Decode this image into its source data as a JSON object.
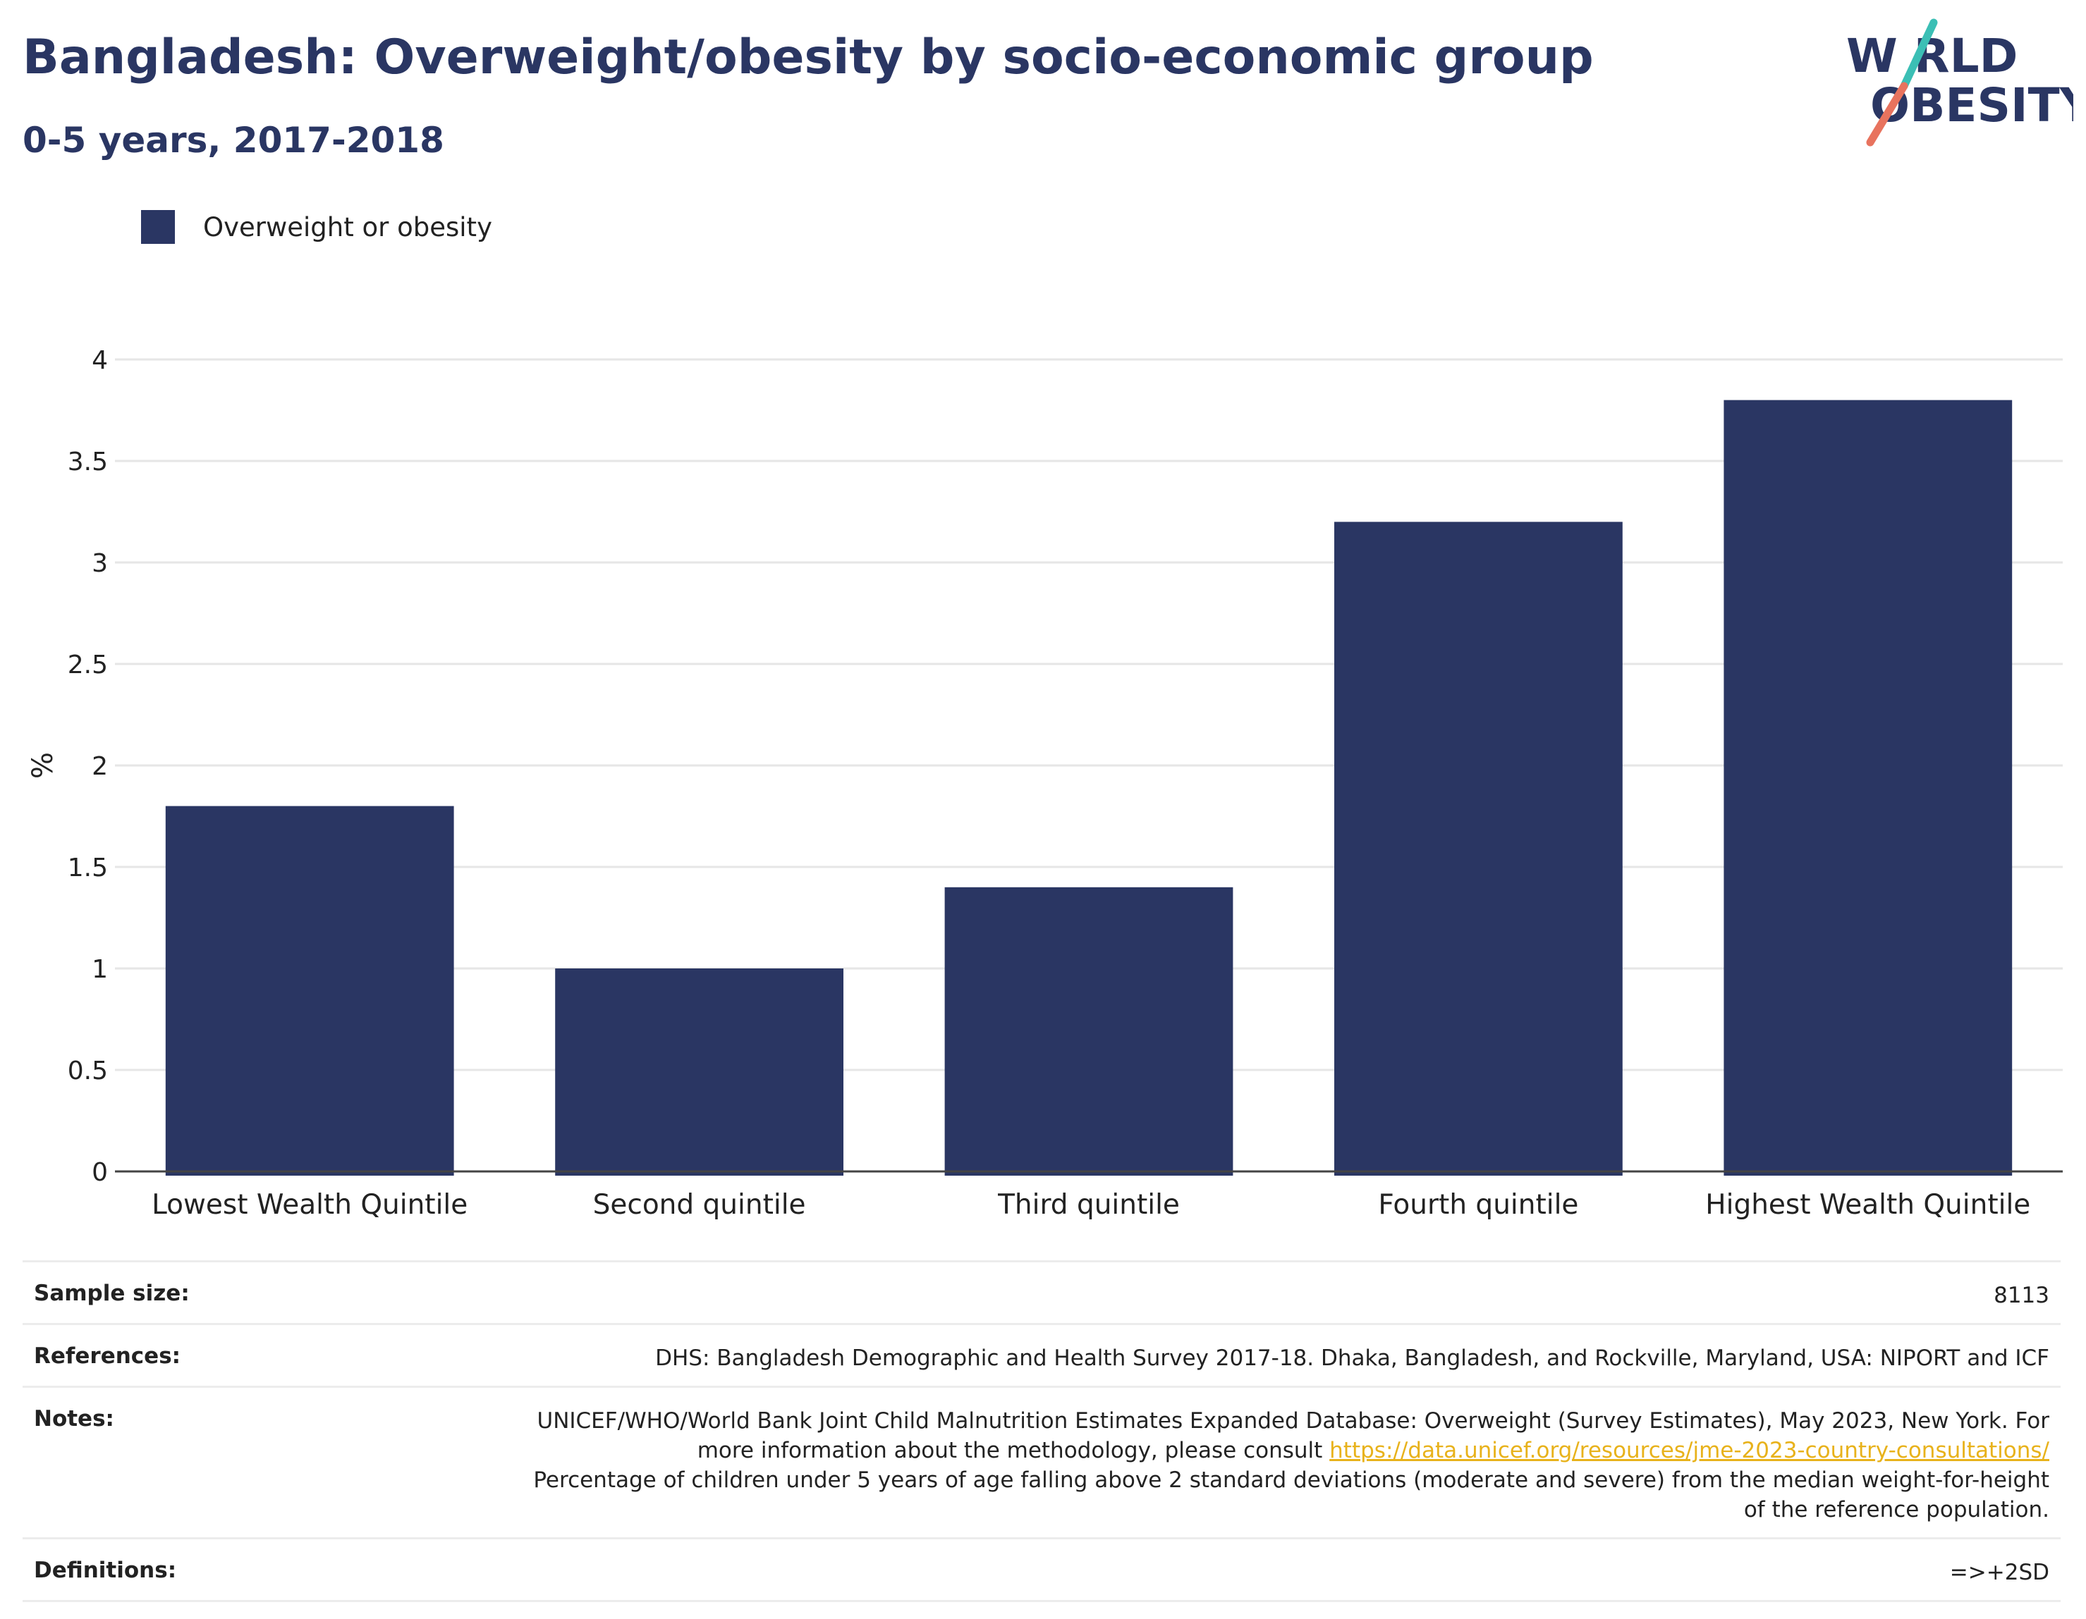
{
  "header": {
    "title": "Bangladesh: Overweight/obesity by socio-economic group",
    "subtitle": "0-5 years, 2017-2018"
  },
  "logo": {
    "line1": "W RLD",
    "line2": "OBESITY",
    "slash_top_color": "#3bbfb5",
    "slash_bottom_color": "#e8735e",
    "text_color": "#2a3663"
  },
  "colors": {
    "bar": "#2a3663",
    "axis": "#444444",
    "grid": "#e6e6e6",
    "link": "#e8b21b"
  },
  "chart_data": {
    "type": "bar",
    "title": "Bangladesh: Overweight/obesity by socio-economic group",
    "subtitle": "0-5 years, 2017-2018",
    "categories": [
      "Lowest Wealth Quintile",
      "Second quintile",
      "Third quintile",
      "Fourth quintile",
      "Highest Wealth Quintile"
    ],
    "series": [
      {
        "name": "Overweight or obesity",
        "values": [
          1.8,
          1.0,
          1.4,
          3.2,
          3.8
        ]
      }
    ],
    "xlabel": "",
    "ylabel": "%",
    "ylim": [
      0,
      4
    ],
    "yticks": [
      0,
      0.5,
      1,
      1.5,
      2,
      2.5,
      3,
      3.5,
      4
    ],
    "ytick_labels": [
      "0",
      "0.5",
      "1",
      "1.5",
      "2",
      "2.5",
      "3",
      "3.5",
      "4"
    ],
    "grid": true,
    "legend_position": "top-left"
  },
  "info": {
    "sample_size_label": "Sample size:",
    "sample_size_value": "8113",
    "references_label": "References:",
    "references_value": "DHS: Bangladesh Demographic and Health Survey 2017-18. Dhaka, Bangladesh, and Rockville, Maryland, USA: NIPORT and ICF",
    "notes_label": "Notes:",
    "notes_line1": "UNICEF/WHO/World Bank Joint Child Malnutrition Estimates Expanded Database: Overweight (Survey Estimates), May 2023, New York. For more information about the methodology, please consult",
    "notes_link": "https://data.unicef.org/resources/jme-2023-country-consultations/",
    "notes_line2": "Percentage of children under 5 years of age falling above 2 standard deviations (moderate and severe) from the median weight-for-height of the reference population.",
    "definitions_label": "Definitions:",
    "definitions_value": "=>+2SD"
  }
}
